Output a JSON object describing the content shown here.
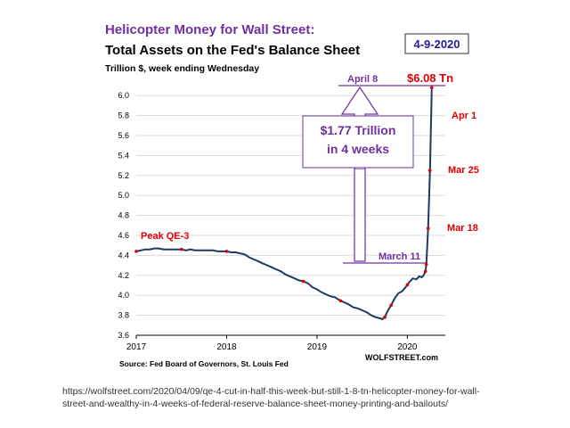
{
  "chart_data": {
    "type": "line",
    "title": "Helicopter Money for Wall Street:",
    "subtitle": "Total Assets on the Fed's Balance Sheet",
    "units_label": "Trillion $, week ending Wednesday",
    "date_badge": "4-9-2020",
    "source": "Source: Fed Board of Governors, St. Louis Fed",
    "brand": "WOLFSTREET.com",
    "xlim": [
      2017.0,
      2020.42
    ],
    "ylim": [
      3.6,
      6.1
    ],
    "x_ticks": [
      2017,
      2018,
      2019,
      2020
    ],
    "x_tick_labels": [
      "2017",
      "2018",
      "2019",
      "2020"
    ],
    "y_ticks": [
      3.6,
      3.8,
      4.0,
      4.2,
      4.4,
      4.6,
      4.8,
      5.0,
      5.2,
      5.4,
      5.6,
      5.8,
      6.0
    ],
    "y_tick_labels": [
      "3.6",
      "3.8",
      "4.0",
      "4.2",
      "4.4",
      "4.6",
      "4.8",
      "5.0",
      "5.2",
      "5.4",
      "5.6",
      "5.8",
      "6.0"
    ],
    "grid": true,
    "series": [
      {
        "color": "#1f3864",
        "x": [
          2017.0,
          2017.05,
          2017.1,
          2017.15,
          2017.2,
          2017.25,
          2017.3,
          2017.35,
          2017.4,
          2017.45,
          2017.5,
          2017.55,
          2017.6,
          2017.65,
          2017.7,
          2017.75,
          2017.8,
          2017.85,
          2017.9,
          2017.95,
          2018.0,
          2018.05,
          2018.1,
          2018.15,
          2018.2,
          2018.25,
          2018.3,
          2018.35,
          2018.4,
          2018.45,
          2018.5,
          2018.55,
          2018.6,
          2018.65,
          2018.7,
          2018.75,
          2018.8,
          2018.85,
          2018.9,
          2018.95,
          2019.0,
          2019.05,
          2019.1,
          2019.15,
          2019.2,
          2019.25,
          2019.3,
          2019.35,
          2019.4,
          2019.45,
          2019.5,
          2019.55,
          2019.6,
          2019.65,
          2019.7,
          2019.72,
          2019.75,
          2019.78,
          2019.82,
          2019.86,
          2019.9,
          2019.94,
          2019.98,
          2020.02,
          2020.06,
          2020.1,
          2020.13,
          2020.16,
          2020.18,
          2020.2,
          2020.21,
          2020.23,
          2020.25,
          2020.27
        ],
        "y": [
          4.44,
          4.45,
          4.46,
          4.46,
          4.47,
          4.47,
          4.46,
          4.46,
          4.46,
          4.46,
          4.46,
          4.45,
          4.46,
          4.45,
          4.45,
          4.45,
          4.45,
          4.45,
          4.44,
          4.44,
          4.44,
          4.43,
          4.43,
          4.42,
          4.41,
          4.38,
          4.36,
          4.34,
          4.32,
          4.3,
          4.28,
          4.26,
          4.24,
          4.21,
          4.19,
          4.17,
          4.15,
          4.14,
          4.12,
          4.08,
          4.06,
          4.03,
          4.01,
          3.99,
          3.98,
          3.95,
          3.93,
          3.91,
          3.88,
          3.87,
          3.85,
          3.83,
          3.8,
          3.78,
          3.77,
          3.76,
          3.78,
          3.84,
          3.9,
          3.97,
          4.02,
          4.04,
          4.08,
          4.13,
          4.17,
          4.16,
          4.19,
          4.18,
          4.2,
          4.24,
          4.31,
          4.67,
          5.25,
          6.08
        ]
      }
    ],
    "marker_dates": [
      2017.0,
      2017.5,
      2018.0,
      2018.85,
      2019.26,
      2019.75,
      2019.82,
      2020.0,
      2020.2,
      2020.21,
      2020.23,
      2020.25,
      2020.27
    ],
    "annotations": {
      "peak": "Peak QE-3",
      "total": "$6.08 Tn",
      "april8": "April 8",
      "march11": "March 11",
      "apr1": "Apr 1",
      "mar25": "Mar 25",
      "mar18": "Mar 18",
      "increase_line1": "$1.77 Trillion",
      "increase_line2": "in 4 weeks"
    },
    "colors": {
      "title": "#7030a0",
      "line": "#1f3864",
      "accent_red": "#e00000",
      "purple": "#7030a0",
      "badge_text": "#1f1f8f",
      "grid": "#d9d9d9"
    }
  },
  "footer": {
    "url_line1": "https://wolfstreet.com/2020/04/09/qe-4-cut-in-half-this-week-but-still-1-8-tn-helicopter-money-for-wall-",
    "url_line2": "street-and-wealthy-in-4-weeks-of-federal-reserve-balance-sheet-money-printing-and-bailouts/"
  }
}
